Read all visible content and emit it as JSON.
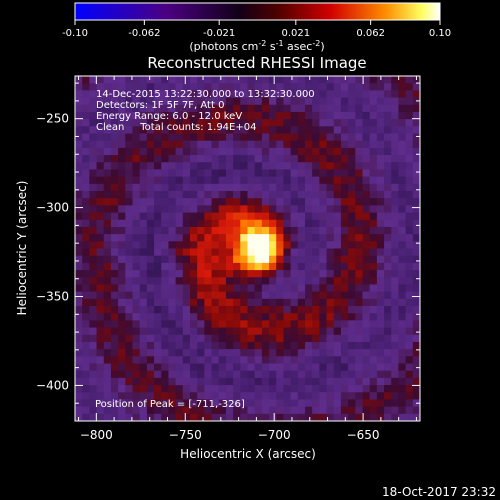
{
  "footer_timestamp": "18-Oct-2017 23:32",
  "colorbar": {
    "ticks": [
      "-0.10",
      "-0.062",
      "-0.021",
      "0.021",
      "0.062",
      "0.10"
    ],
    "min": -0.1,
    "max": 0.1,
    "unit_parts": [
      "(photons cm",
      "-2",
      " s",
      "-1",
      " asec",
      "-2",
      ")"
    ]
  },
  "chart_data": {
    "type": "heatmap",
    "title": "Reconstructed RHESSI Image",
    "xlabel": "Heliocentric X (arcsec)",
    "ylabel": "Heliocentric Y (arcsec)",
    "xlim": [
      -812,
      -618
    ],
    "ylim": [
      -420,
      -226
    ],
    "xticks": [
      -800,
      -750,
      -700,
      -650
    ],
    "yticks": [
      -250,
      -300,
      -350,
      -400
    ],
    "annotations": [
      "14-Dec-2015 13:22:30.000 to 13:32:30.000",
      "Detectors: 1F 5F 7F, Att 0",
      "Energy Range: 6.0 - 12.0 keV",
      "Clean     Total counts: 1.94E+04"
    ],
    "peak_label": "Position of Peak = [-711,-326]",
    "peak": {
      "x": -711,
      "y": -326
    },
    "colormap": [
      "#0000ff",
      "#4b0082",
      "#000000",
      "#cc0000",
      "#ff8000",
      "#ffff00",
      "#ffffff"
    ]
  }
}
